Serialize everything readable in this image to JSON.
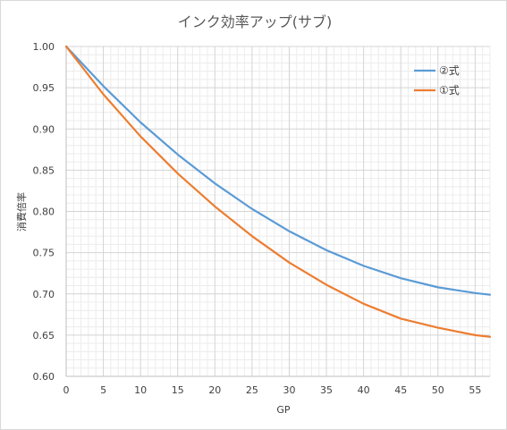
{
  "chart_data": {
    "type": "line",
    "title": "インク効率アップ(サブ)",
    "xlabel": "GP",
    "ylabel": "消費倍率",
    "xlim": [
      0,
      57
    ],
    "ylim": [
      0.6,
      1.0
    ],
    "x_ticks": [
      0,
      5,
      10,
      15,
      20,
      25,
      30,
      35,
      40,
      45,
      50,
      55
    ],
    "y_ticks": [
      "0.60",
      "0.65",
      "0.70",
      "0.75",
      "0.80",
      "0.85",
      "0.90",
      "0.95",
      "1.00"
    ],
    "grid": true,
    "legend_position": "top-right",
    "series": [
      {
        "name": "②式",
        "color": "#5b9bd5",
        "x": [
          0,
          5,
          10,
          15,
          20,
          25,
          30,
          35,
          40,
          45,
          50,
          55,
          57
        ],
        "y": [
          1.0,
          0.952,
          0.908,
          0.869,
          0.834,
          0.803,
          0.776,
          0.753,
          0.734,
          0.719,
          0.708,
          0.701,
          0.699
        ]
      },
      {
        "name": "①式",
        "color": "#ed7d31",
        "x": [
          0,
          5,
          10,
          15,
          20,
          25,
          30,
          35,
          40,
          45,
          50,
          55,
          57
        ],
        "y": [
          1.0,
          0.942,
          0.891,
          0.846,
          0.806,
          0.77,
          0.738,
          0.711,
          0.688,
          0.67,
          0.659,
          0.65,
          0.648
        ]
      }
    ]
  }
}
